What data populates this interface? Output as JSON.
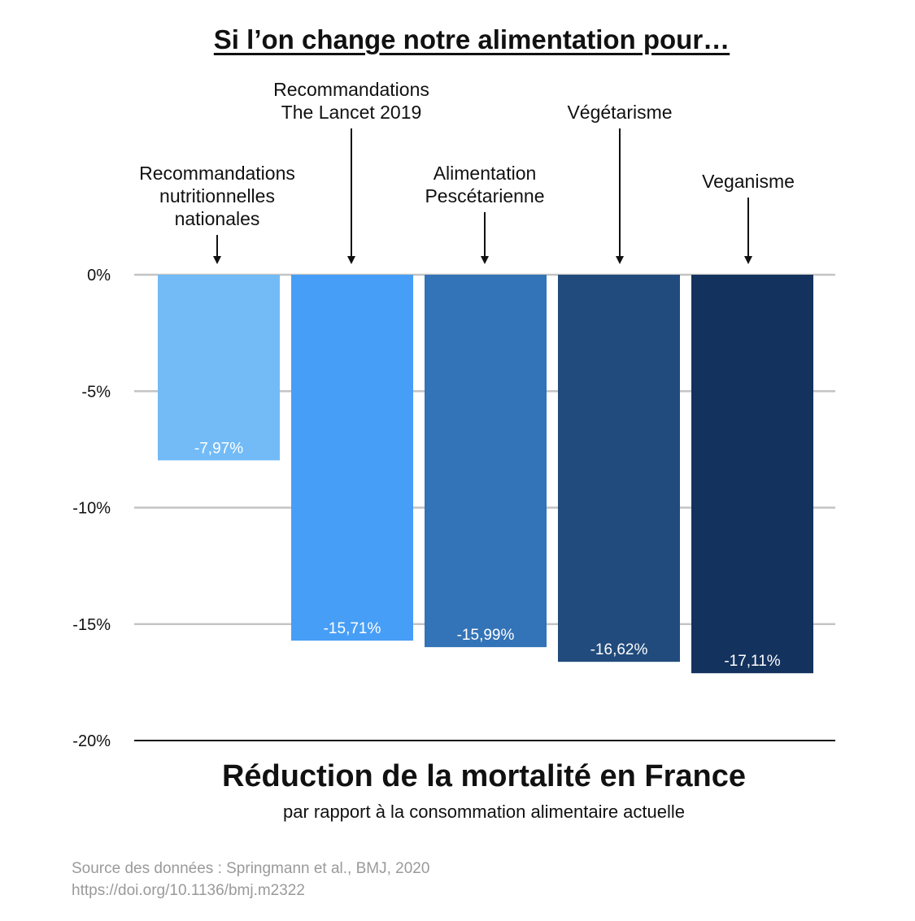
{
  "chart_data": {
    "type": "bar",
    "title": "Si l’on change notre alimentation pour…",
    "xlabel": "Réduction de la mortalité en France",
    "subtitle": "par rapport à la consommation alimentaire actuelle",
    "categories": [
      [
        "Recommandations",
        "nutritionnelles",
        "nationales"
      ],
      [
        "Recommandations",
        "The Lancet 2019"
      ],
      [
        "Alimentation",
        "Pescétarienne"
      ],
      [
        "Végétarisme"
      ],
      [
        "Veganisme"
      ]
    ],
    "values": [
      -7.97,
      -15.71,
      -15.99,
      -16.62,
      -17.11
    ],
    "value_labels": [
      "-7,97%",
      "-15,71%",
      "-15,99%",
      "-16,62%",
      "-17,11%"
    ],
    "colors": [
      "#72BBF7",
      "#479EF6",
      "#3373B7",
      "#214B7C",
      "#14325E"
    ],
    "yticks": [
      0,
      -5,
      -10,
      -15,
      -20
    ],
    "ytick_labels": [
      "0%",
      "-5%",
      "-10%",
      "-15%",
      "-20%"
    ],
    "ylim": [
      -20,
      0
    ],
    "grid": true,
    "legend": "none"
  },
  "source": {
    "line1": "Source des données : Springmann et al., BMJ, 2020",
    "line2": "https://doi.org/10.1136/bmj.m2322"
  }
}
